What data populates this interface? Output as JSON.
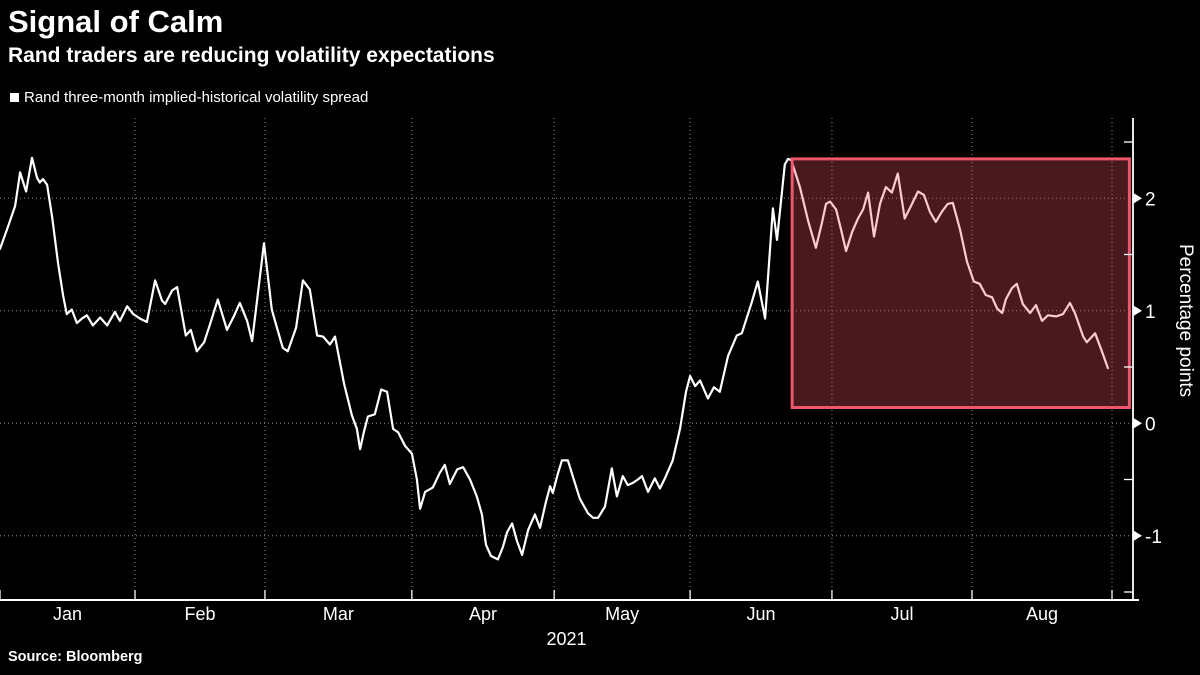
{
  "header": {
    "title": "Signal of Calm",
    "subtitle": "Rand traders are reducing volatility expectations"
  },
  "legend": {
    "label": "Rand three-month implied-historical volatility spread",
    "marker_color": "#ffffff"
  },
  "footer": {
    "source": "Source: Bloomberg"
  },
  "chart_data": {
    "type": "line",
    "title": "Signal of Calm",
    "subtitle": "Rand traders are reducing volatility expectations",
    "ylabel": "Percentage points",
    "x_year": "2021",
    "background_color": "#000000",
    "grid_color": "#8d8d8d",
    "axis_color": "#ffffff",
    "tick_label_color": "#ffffff",
    "ylim": [
      -1.57,
      2.71
    ],
    "y_ticks_major": [
      2,
      1,
      0,
      -1
    ],
    "y_ticks_minor": [
      2.5,
      1.5,
      0.5,
      -0.5,
      -1.5
    ],
    "x_months": [
      {
        "label": "Jan",
        "start": 0,
        "end": 29.5
      },
      {
        "label": "Feb",
        "start": 29.5,
        "end": 57.9
      },
      {
        "label": "Mar",
        "start": 57.9,
        "end": 90
      },
      {
        "label": "Apr",
        "start": 90,
        "end": 121.1
      },
      {
        "label": "May",
        "start": 121.1,
        "end": 150.8
      },
      {
        "label": "Jun",
        "start": 150.8,
        "end": 181.8
      },
      {
        "label": "Jul",
        "start": 181.8,
        "end": 212.4
      },
      {
        "label": "Aug",
        "start": 212.4,
        "end": 243
      }
    ],
    "highlight": {
      "start_day": 173.1,
      "end_day": 246.8,
      "bottom": 0.14,
      "top": 2.35,
      "border_color": "#f0566b",
      "fill_color": "rgba(240,86,107,0.30)"
    },
    "series": [
      {
        "name": "Rand three-month implied-historical volatility spread",
        "color": "#ffffff",
        "points": [
          [
            0,
            1.55
          ],
          [
            1.5,
            1.72
          ],
          [
            3.3,
            1.93
          ],
          [
            4.4,
            2.23
          ],
          [
            5.7,
            2.06
          ],
          [
            7,
            2.36
          ],
          [
            8.1,
            2.18
          ],
          [
            8.7,
            2.14
          ],
          [
            9.4,
            2.17
          ],
          [
            10.3,
            2.12
          ],
          [
            11.4,
            1.83
          ],
          [
            12.7,
            1.42
          ],
          [
            13.8,
            1.13
          ],
          [
            14.6,
            0.97
          ],
          [
            15.7,
            1.01
          ],
          [
            16.8,
            0.89
          ],
          [
            17.9,
            0.93
          ],
          [
            19,
            0.96
          ],
          [
            20.3,
            0.87
          ],
          [
            21.9,
            0.94
          ],
          [
            23.4,
            0.87
          ],
          [
            25.1,
            0.99
          ],
          [
            26.2,
            0.91
          ],
          [
            27.8,
            1.04
          ],
          [
            29.1,
            0.97
          ],
          [
            30.6,
            0.93
          ],
          [
            32.1,
            0.9
          ],
          [
            33.9,
            1.27
          ],
          [
            35.4,
            1.09
          ],
          [
            36.1,
            1.06
          ],
          [
            37.6,
            1.18
          ],
          [
            38.7,
            1.21
          ],
          [
            40.6,
            0.78
          ],
          [
            41.7,
            0.83
          ],
          [
            43,
            0.64
          ],
          [
            44.6,
            0.72
          ],
          [
            45.9,
            0.88
          ],
          [
            47.6,
            1.1
          ],
          [
            49.6,
            0.83
          ],
          [
            51.1,
            0.95
          ],
          [
            52.4,
            1.07
          ],
          [
            54,
            0.91
          ],
          [
            55.1,
            0.73
          ],
          [
            57.7,
            1.6
          ],
          [
            59.4,
            1.01
          ],
          [
            60.1,
            0.91
          ],
          [
            61.8,
            0.67
          ],
          [
            62.9,
            0.64
          ],
          [
            64.7,
            0.85
          ],
          [
            66.2,
            1.27
          ],
          [
            67.7,
            1.19
          ],
          [
            69.3,
            0.78
          ],
          [
            70.6,
            0.77
          ],
          [
            72.1,
            0.7
          ],
          [
            73.2,
            0.77
          ],
          [
            75.2,
            0.35
          ],
          [
            76.9,
            0.07
          ],
          [
            78,
            -0.05
          ],
          [
            78.7,
            -0.23
          ],
          [
            79.5,
            -0.08
          ],
          [
            80.4,
            0.06
          ],
          [
            81.9,
            0.08
          ],
          [
            83.3,
            0.3
          ],
          [
            84.6,
            0.28
          ],
          [
            85.9,
            -0.05
          ],
          [
            87,
            -0.08
          ],
          [
            88.5,
            -0.2
          ],
          [
            90,
            -0.27
          ],
          [
            91.1,
            -0.5
          ],
          [
            91.8,
            -0.76
          ],
          [
            92.9,
            -0.61
          ],
          [
            94.6,
            -0.57
          ],
          [
            96.1,
            -0.44
          ],
          [
            97.2,
            -0.37
          ],
          [
            98.3,
            -0.54
          ],
          [
            99.9,
            -0.41
          ],
          [
            101.2,
            -0.39
          ],
          [
            102.7,
            -0.5
          ],
          [
            104.2,
            -0.65
          ],
          [
            105.3,
            -0.81
          ],
          [
            106.2,
            -1.08
          ],
          [
            107.3,
            -1.18
          ],
          [
            108.8,
            -1.21
          ],
          [
            109.9,
            -1.1
          ],
          [
            110.8,
            -0.97
          ],
          [
            111.9,
            -0.89
          ],
          [
            113,
            -1.05
          ],
          [
            114.1,
            -1.17
          ],
          [
            115.4,
            -0.95
          ],
          [
            116.9,
            -0.81
          ],
          [
            118,
            -0.93
          ],
          [
            119.3,
            -0.7
          ],
          [
            120.2,
            -0.56
          ],
          [
            120.8,
            -0.62
          ],
          [
            121.9,
            -0.45
          ],
          [
            122.8,
            -0.33
          ],
          [
            124.1,
            -0.33
          ],
          [
            125.4,
            -0.5
          ],
          [
            126.7,
            -0.67
          ],
          [
            128.5,
            -0.8
          ],
          [
            129.6,
            -0.84
          ],
          [
            130.7,
            -0.84
          ],
          [
            132.2,
            -0.74
          ],
          [
            133.7,
            -0.4
          ],
          [
            134.8,
            -0.65
          ],
          [
            136.1,
            -0.47
          ],
          [
            137.2,
            -0.55
          ],
          [
            138.3,
            -0.53
          ],
          [
            139.4,
            -0.5
          ],
          [
            140.3,
            -0.47
          ],
          [
            141.6,
            -0.61
          ],
          [
            143.1,
            -0.49
          ],
          [
            144.2,
            -0.58
          ],
          [
            145.3,
            -0.49
          ],
          [
            147,
            -0.33
          ],
          [
            148.6,
            -0.05
          ],
          [
            149.9,
            0.28
          ],
          [
            150.8,
            0.42
          ],
          [
            151.9,
            0.33
          ],
          [
            153,
            0.38
          ],
          [
            154.7,
            0.22
          ],
          [
            156,
            0.32
          ],
          [
            157.3,
            0.28
          ],
          [
            159.1,
            0.6
          ],
          [
            161,
            0.78
          ],
          [
            162.1,
            0.8
          ],
          [
            164.3,
            1.08
          ],
          [
            165.6,
            1.26
          ],
          [
            167.2,
            0.93
          ],
          [
            168.9,
            1.91
          ],
          [
            169.8,
            1.63
          ],
          [
            171.5,
            2.3
          ],
          [
            172.2,
            2.35
          ],
          [
            172.9,
            2.34
          ],
          [
            174.8,
            2.1
          ],
          [
            176.6,
            1.8
          ],
          [
            178.3,
            1.56
          ],
          [
            179.6,
            1.78
          ],
          [
            180.5,
            1.95
          ],
          [
            181.4,
            1.97
          ],
          [
            182.7,
            1.9
          ],
          [
            183.8,
            1.72
          ],
          [
            184.9,
            1.53
          ],
          [
            186.2,
            1.7
          ],
          [
            187.5,
            1.82
          ],
          [
            188.6,
            1.9
          ],
          [
            189.7,
            2.05
          ],
          [
            191,
            1.66
          ],
          [
            192.3,
            1.95
          ],
          [
            193.6,
            2.1
          ],
          [
            194.9,
            2.05
          ],
          [
            196.2,
            2.22
          ],
          [
            197.7,
            1.82
          ],
          [
            199.3,
            1.95
          ],
          [
            200.6,
            2.06
          ],
          [
            201.9,
            2.03
          ],
          [
            203.2,
            1.88
          ],
          [
            204.5,
            1.79
          ],
          [
            205.8,
            1.88
          ],
          [
            207.1,
            1.95
          ],
          [
            208.2,
            1.96
          ],
          [
            209.8,
            1.72
          ],
          [
            211.3,
            1.44
          ],
          [
            212.8,
            1.26
          ],
          [
            214.1,
            1.24
          ],
          [
            215.4,
            1.14
          ],
          [
            216.8,
            1.12
          ],
          [
            217.9,
            1.02
          ],
          [
            219,
            0.98
          ],
          [
            219.8,
            1.1
          ],
          [
            221.1,
            1.2
          ],
          [
            222.2,
            1.24
          ],
          [
            223.5,
            1.06
          ],
          [
            225.1,
            0.98
          ],
          [
            226.4,
            1.05
          ],
          [
            227.7,
            0.91
          ],
          [
            229,
            0.96
          ],
          [
            230.8,
            0.95
          ],
          [
            232.3,
            0.97
          ],
          [
            233.8,
            1.07
          ],
          [
            234.9,
            0.98
          ],
          [
            235.6,
            0.9
          ],
          [
            236.7,
            0.77
          ],
          [
            237.5,
            0.72
          ],
          [
            239.3,
            0.8
          ],
          [
            240.8,
            0.64
          ],
          [
            242.1,
            0.49
          ]
        ]
      }
    ]
  }
}
